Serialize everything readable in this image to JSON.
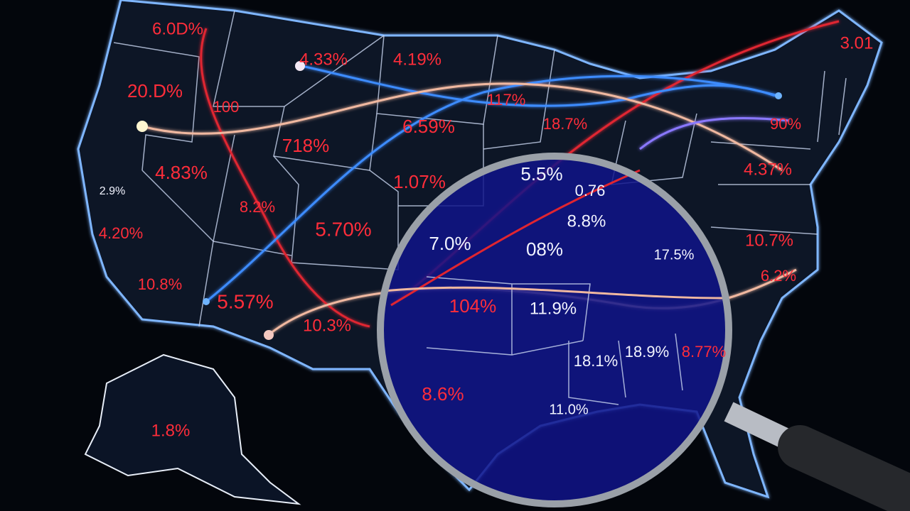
{
  "labels": [
    "6.0D%",
    "4.33%",
    "4.19%",
    "3.01",
    "20.D%",
    "100",
    "117%",
    "6.59%",
    "18.7%",
    "90%",
    "718%",
    "4.83%",
    "5.5%",
    "1.07%",
    "4.37%",
    "0.76",
    "2.9%",
    "8.8%",
    "8.2%",
    "5.70%",
    "4.20%",
    "7.0%",
    "08%",
    "17.5%",
    "10.7%",
    "10.8%",
    "5.57%",
    "104%",
    "11.9%",
    "6.2%",
    "10.3%",
    "18.1%",
    "18.9%",
    "8.77%",
    "8.6%",
    "11.0%",
    "1.8%"
  ]
}
